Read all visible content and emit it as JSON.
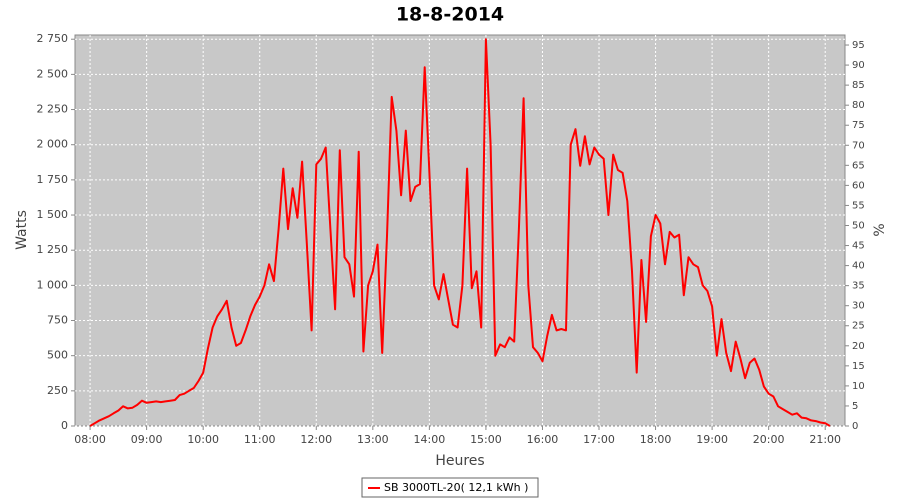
{
  "chart_data": {
    "type": "line",
    "title": "18-8-2014",
    "x_label": "Heures",
    "y_label": "Watts",
    "y2_label": "%",
    "x": [
      "08:00",
      "08:05",
      "08:10",
      "08:15",
      "08:20",
      "08:25",
      "08:30",
      "08:35",
      "08:40",
      "08:45",
      "08:50",
      "08:55",
      "09:00",
      "09:05",
      "09:10",
      "09:15",
      "09:20",
      "09:25",
      "09:30",
      "09:35",
      "09:40",
      "09:45",
      "09:50",
      "09:55",
      "10:00",
      "10:05",
      "10:10",
      "10:15",
      "10:20",
      "10:25",
      "10:30",
      "10:35",
      "10:40",
      "10:45",
      "10:50",
      "10:55",
      "11:00",
      "11:05",
      "11:10",
      "11:15",
      "11:20",
      "11:25",
      "11:30",
      "11:35",
      "11:40",
      "11:45",
      "11:50",
      "11:55",
      "12:00",
      "12:05",
      "12:10",
      "12:15",
      "12:20",
      "12:25",
      "12:30",
      "12:35",
      "12:40",
      "12:45",
      "12:50",
      "12:55",
      "13:00",
      "13:05",
      "13:10",
      "13:15",
      "13:20",
      "13:25",
      "13:30",
      "13:35",
      "13:40",
      "13:45",
      "13:50",
      "13:55",
      "14:00",
      "14:05",
      "14:10",
      "14:15",
      "14:20",
      "14:25",
      "14:30",
      "14:35",
      "14:40",
      "14:45",
      "14:50",
      "14:55",
      "15:00",
      "15:05",
      "15:10",
      "15:15",
      "15:20",
      "15:25",
      "15:30",
      "15:35",
      "15:40",
      "15:45",
      "15:50",
      "15:55",
      "16:00",
      "16:05",
      "16:10",
      "16:15",
      "16:20",
      "16:25",
      "16:30",
      "16:35",
      "16:40",
      "16:45",
      "16:50",
      "16:55",
      "17:00",
      "17:05",
      "17:10",
      "17:15",
      "17:20",
      "17:25",
      "17:30",
      "17:35",
      "17:40",
      "17:45",
      "17:50",
      "17:55",
      "18:00",
      "18:05",
      "18:10",
      "18:15",
      "18:20",
      "18:25",
      "18:30",
      "18:35",
      "18:40",
      "18:45",
      "18:50",
      "18:55",
      "19:00",
      "19:05",
      "19:10",
      "19:15",
      "19:20",
      "19:25",
      "19:30",
      "19:35",
      "19:40",
      "19:45",
      "19:50",
      "19:55",
      "20:00",
      "20:05",
      "20:10",
      "20:15",
      "20:20",
      "20:25",
      "20:30",
      "20:35",
      "20:40",
      "20:45",
      "20:50",
      "20:55",
      "21:00",
      "21:05"
    ],
    "series": [
      {
        "name": "SB 3000TL-20( 12,1 kWh )",
        "color": "#ff0000",
        "values": [
          0,
          20,
          40,
          55,
          70,
          90,
          110,
          140,
          125,
          130,
          150,
          180,
          165,
          170,
          175,
          170,
          175,
          180,
          185,
          220,
          230,
          250,
          270,
          320,
          380,
          550,
          700,
          780,
          830,
          890,
          700,
          570,
          590,
          680,
          780,
          860,
          920,
          1000,
          1150,
          1030,
          1400,
          1830,
          1400,
          1690,
          1480,
          1880,
          1300,
          680,
          1860,
          1900,
          1980,
          1400,
          830,
          1960,
          1200,
          1150,
          920,
          1950,
          530,
          1000,
          1100,
          1290,
          520,
          1350,
          2340,
          2100,
          1640,
          2100,
          1600,
          1700,
          1720,
          2550,
          1800,
          1000,
          900,
          1080,
          900,
          720,
          700,
          1000,
          1830,
          980,
          1100,
          700,
          2750,
          2000,
          500,
          580,
          560,
          630,
          600,
          1400,
          2330,
          1000,
          560,
          520,
          460,
          640,
          790,
          680,
          690,
          680,
          2000,
          2110,
          1850,
          2060,
          1860,
          1980,
          1930,
          1900,
          1500,
          1930,
          1820,
          1800,
          1600,
          1100,
          380,
          1180,
          740,
          1350,
          1500,
          1440,
          1150,
          1380,
          1340,
          1360,
          930,
          1200,
          1150,
          1130,
          1000,
          960,
          850,
          500,
          760,
          520,
          390,
          600,
          480,
          340,
          450,
          480,
          400,
          280,
          230,
          210,
          140,
          120,
          100,
          80,
          90,
          60,
          55,
          40,
          35,
          25,
          20,
          0
        ]
      }
    ],
    "xlim": [
      "07:44",
      "21:21"
    ],
    "xticks": [
      "08:00",
      "09:00",
      "10:00",
      "11:00",
      "12:00",
      "13:00",
      "14:00",
      "15:00",
      "16:00",
      "17:00",
      "18:00",
      "19:00",
      "20:00",
      "21:00"
    ],
    "ylim": [
      0,
      2780
    ],
    "yticks": [
      0,
      250,
      500,
      750,
      {
        "value": 1000,
        "label": "1 000"
      },
      {
        "value": 1250,
        "label": "1 250"
      },
      {
        "value": 1500,
        "label": "1 500"
      },
      {
        "value": 1750,
        "label": "1 750"
      },
      {
        "value": 2000,
        "label": "2 000"
      },
      {
        "value": 2250,
        "label": "2 250"
      },
      {
        "value": 2500,
        "label": "2 500"
      },
      {
        "value": 2750,
        "label": "2 750"
      }
    ],
    "y2lim": [
      0,
      97.5
    ],
    "y2ticks": [
      0,
      5,
      10,
      15,
      20,
      25,
      30,
      35,
      40,
      45,
      50,
      55,
      60,
      65,
      70,
      75,
      80,
      85,
      90,
      95
    ],
    "plot_background": "#c8c8c8",
    "grid": true
  }
}
